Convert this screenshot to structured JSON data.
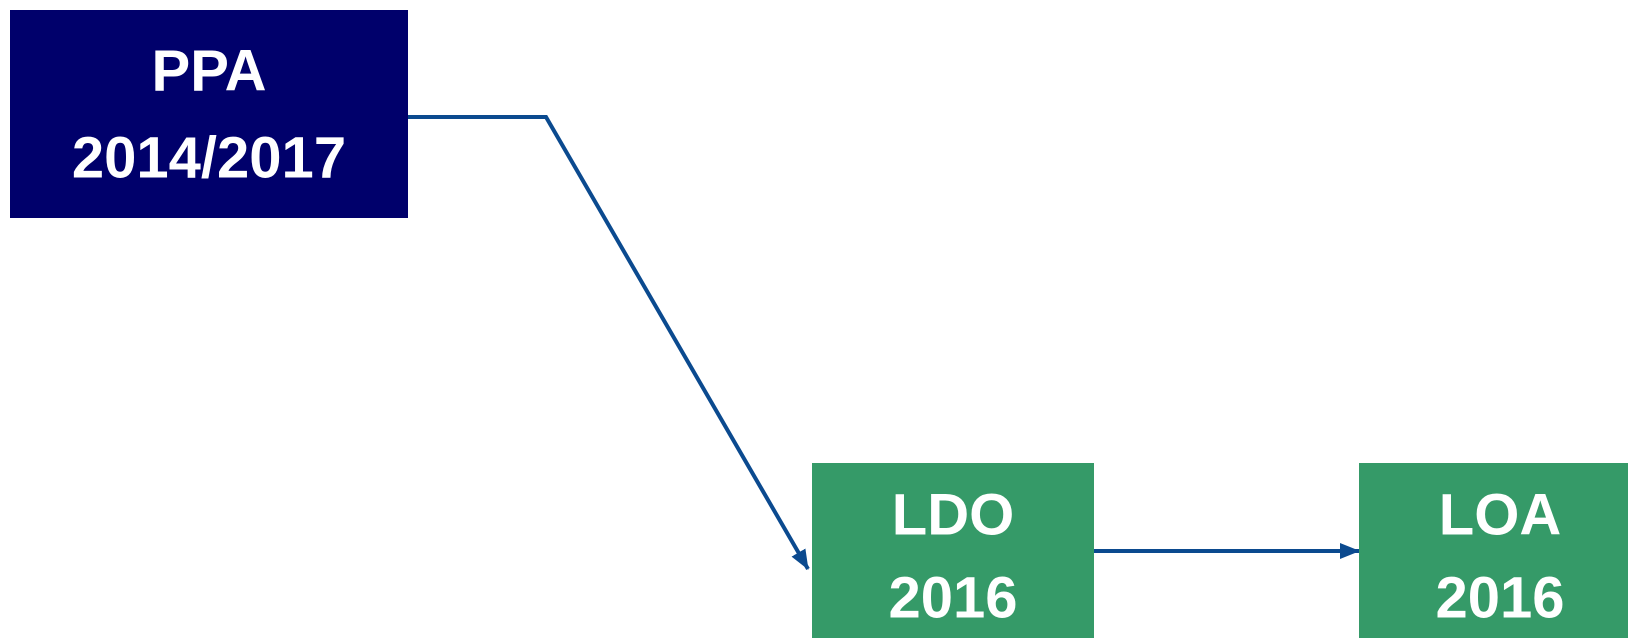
{
  "nodes": [
    {
      "label": [
        "PPA",
        "2014/2017"
      ]
    },
    {
      "label": [
        "LDO",
        "2016"
      ]
    },
    {
      "label": [
        "LOA",
        "2016"
      ]
    }
  ]
}
